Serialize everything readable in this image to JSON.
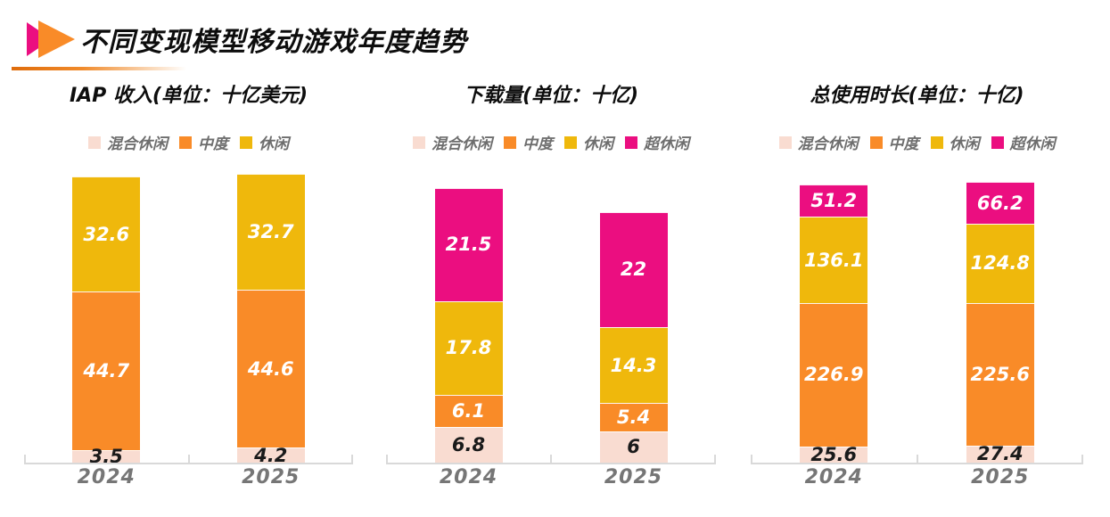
{
  "header": {
    "title": "不同变现模型移动游戏年度趋势",
    "icon": "double-play-arrows-icon",
    "icon_colors": {
      "back_arrow": "#EB0E80",
      "front_arrow": "#F98B28"
    },
    "divider_color": "#DF6C0B"
  },
  "palette": {
    "hybrid_casual": "#F9DCD1",
    "midcore": "#F98B28",
    "casual": "#EFB80C",
    "hyper_casual": "#EB0E80",
    "axis": "#D9D9D9",
    "axis_label_text": "#767676",
    "legend_text": "#6E6E6E"
  },
  "chart_data": [
    {
      "type": "bar",
      "stacked": true,
      "title": "IAP 收入(单位：十亿美元)",
      "categories": [
        "2024",
        "2025"
      ],
      "legend_position": "top",
      "grid": false,
      "series": [
        {
          "name": "混合休闲",
          "color": "#F9DCD1",
          "label_color": "#1a1a1a",
          "values": [
            3.5,
            4.2
          ]
        },
        {
          "name": "中度",
          "color": "#F98B28",
          "label_color": "#ffffff",
          "values": [
            44.7,
            44.6
          ]
        },
        {
          "name": "休闲",
          "color": "#EFB80C",
          "label_color": "#ffffff",
          "values": [
            32.6,
            32.7
          ]
        }
      ],
      "totals": [
        80.8,
        81.5
      ]
    },
    {
      "type": "bar",
      "stacked": true,
      "title": "下载量(单位：十亿)",
      "categories": [
        "2024",
        "2025"
      ],
      "legend_position": "top",
      "grid": false,
      "series": [
        {
          "name": "混合休闲",
          "color": "#F9DCD1",
          "label_color": "#1a1a1a",
          "values": [
            6.8,
            6
          ]
        },
        {
          "name": "中度",
          "color": "#F98B28",
          "label_color": "#ffffff",
          "values": [
            6.1,
            5.4
          ]
        },
        {
          "name": "休闲",
          "color": "#EFB80C",
          "label_color": "#ffffff",
          "values": [
            17.8,
            14.3
          ]
        },
        {
          "name": "超休闲",
          "color": "#EB0E80",
          "label_color": "#ffffff",
          "values": [
            21.5,
            22
          ]
        }
      ],
      "totals": [
        52.2,
        47.7
      ]
    },
    {
      "type": "bar",
      "stacked": true,
      "title": "总使用时长(单位：十亿)",
      "categories": [
        "2024",
        "2025"
      ],
      "legend_position": "top",
      "grid": false,
      "series": [
        {
          "name": "混合休闲",
          "color": "#F9DCD1",
          "label_color": "#1a1a1a",
          "values": [
            25.6,
            27.4
          ]
        },
        {
          "name": "中度",
          "color": "#F98B28",
          "label_color": "#ffffff",
          "values": [
            226.9,
            225.6
          ]
        },
        {
          "name": "休闲",
          "color": "#EFB80C",
          "label_color": "#ffffff",
          "values": [
            136.1,
            124.8
          ]
        },
        {
          "name": "超休闲",
          "color": "#EB0E80",
          "label_color": "#ffffff",
          "values": [
            51.2,
            66.2
          ]
        }
      ],
      "totals": [
        439.8,
        444.0
      ]
    }
  ]
}
